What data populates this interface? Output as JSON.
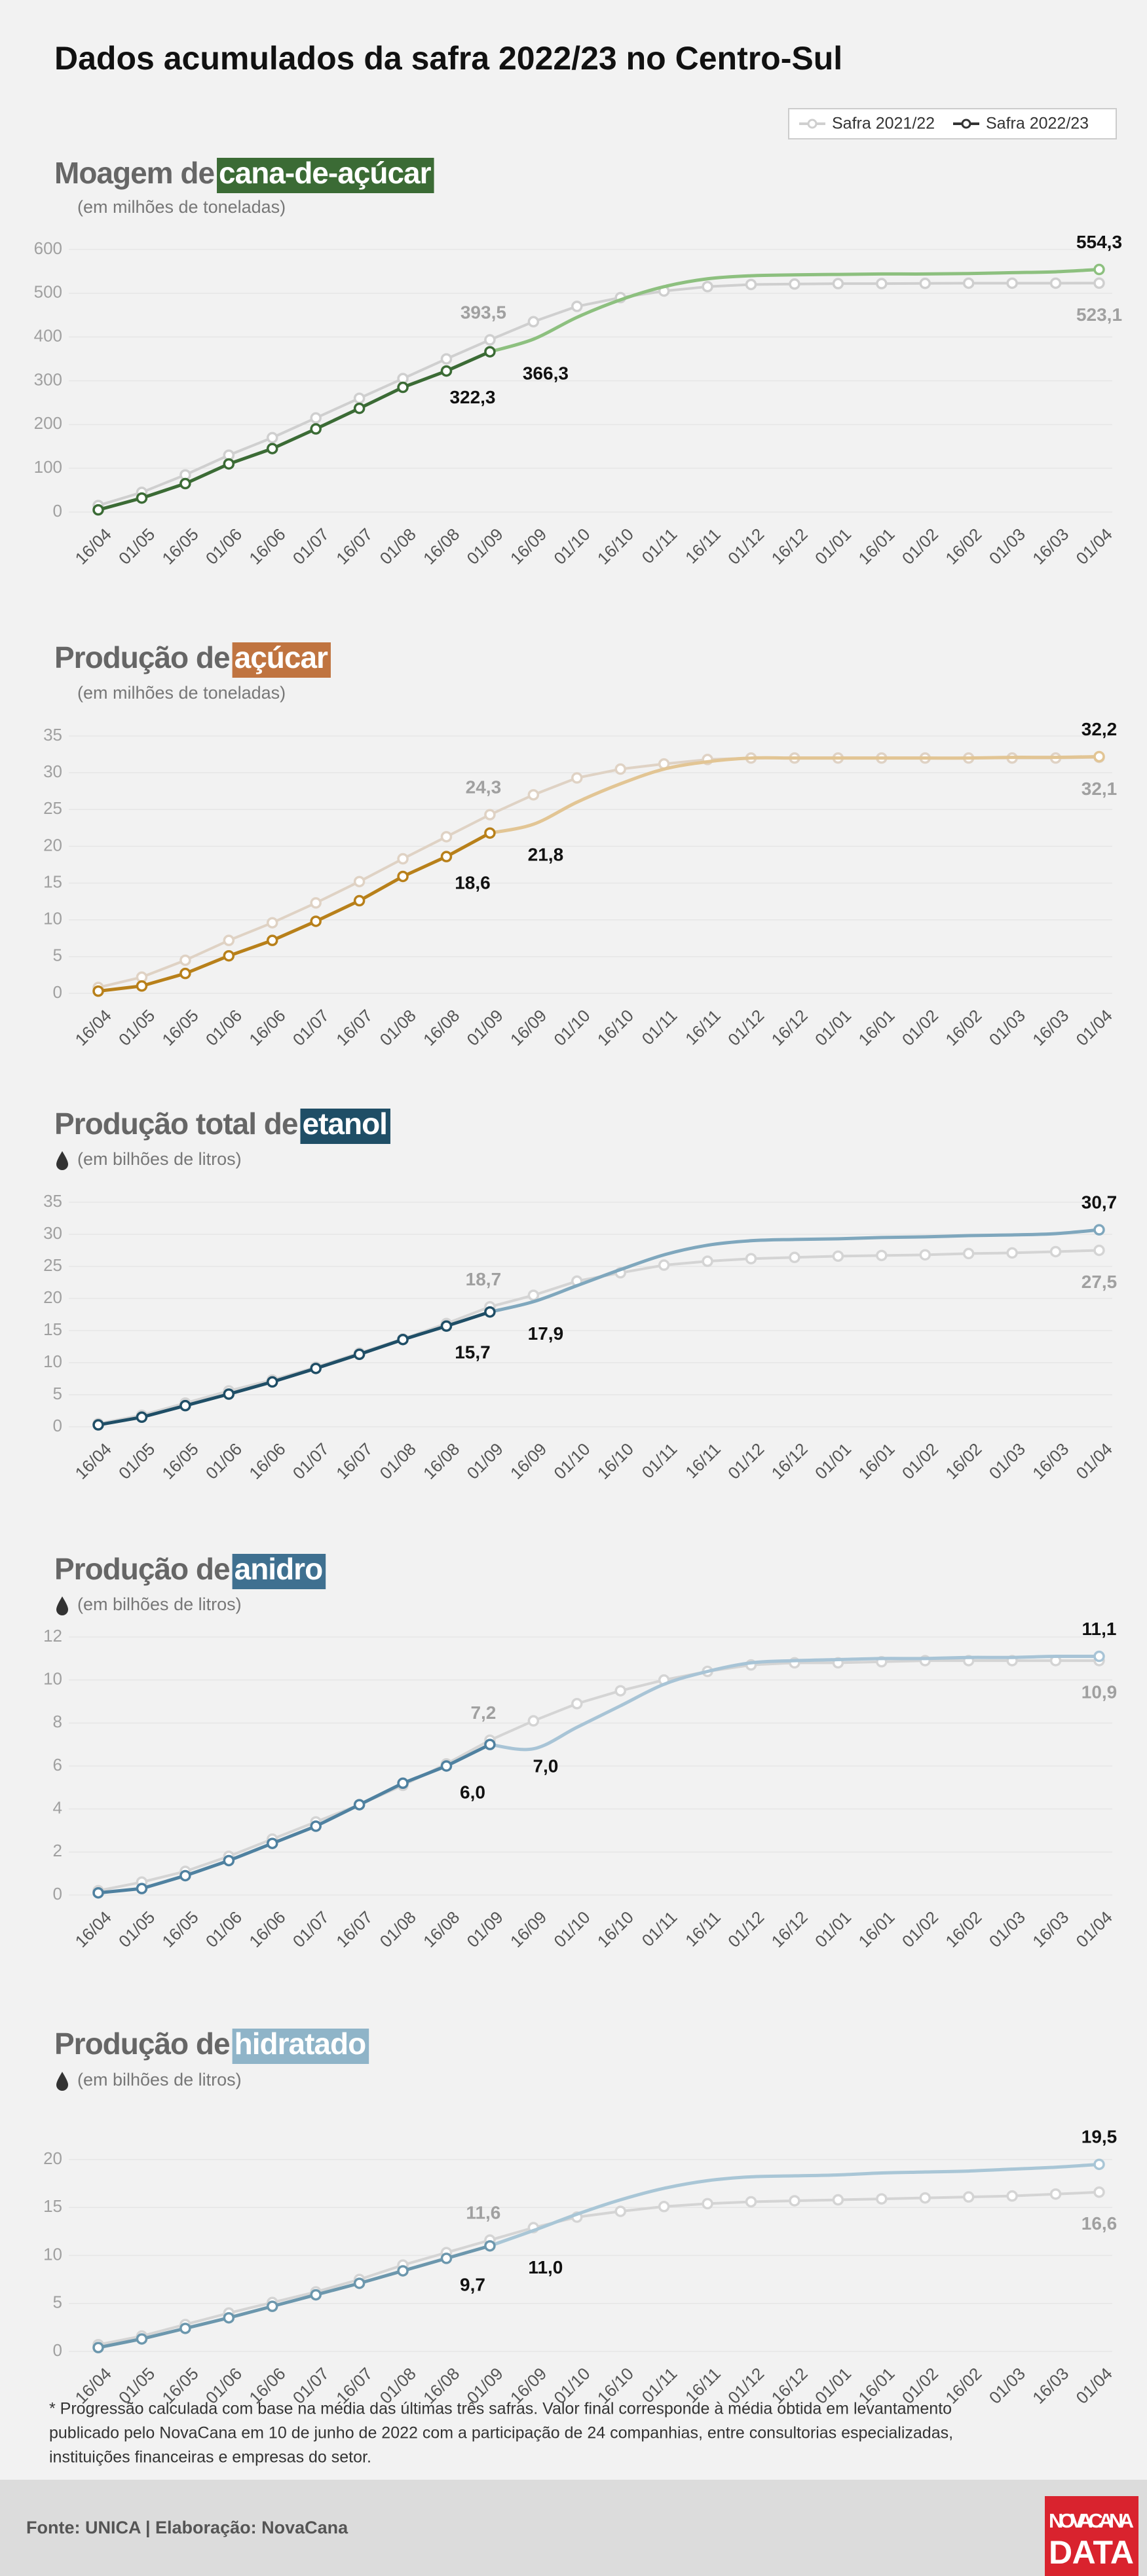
{
  "title": "Dados acumulados da safra 2022/23 no Centro-Sul",
  "legend": [
    {
      "name": "Safra 2021/22",
      "color": "#cfcfcf"
    },
    {
      "name": "Safra 2022/23",
      "color": "#333333"
    }
  ],
  "footnote": [
    "* Progressão calculada com base na média das últimas três safras. Valor final corresponde à média obtida em levantamento",
    "publicado pelo NovaCana em 10 de junho de 2022 com a participação de 24 companhias, entre consultorias especializadas,",
    "instituições financeiras e empresas do setor."
  ],
  "source": "Fonte: UNICA | Elaboração: NovaCana",
  "logo": [
    "NOVACANA",
    "DATA"
  ],
  "chart_data": [
    {
      "type": "line",
      "title_prefix": "Moagem de",
      "title_highlight": "cana-de-açúcar",
      "title_color": "#3b6b35",
      "subtitle": "(em milhões de toneladas)",
      "categories": [
        "16/04",
        "01/05",
        "16/05",
        "01/06",
        "16/06",
        "01/07",
        "16/07",
        "01/08",
        "16/08",
        "01/09",
        "16/09",
        "01/10",
        "16/10",
        "01/11",
        "16/11",
        "01/12",
        "16/12",
        "01/01",
        "16/01",
        "01/02",
        "16/02",
        "01/03",
        "16/03",
        "01/04"
      ],
      "ylim": [
        0,
        600
      ],
      "yticks": [
        0,
        100,
        200,
        300,
        400,
        500,
        600
      ],
      "series": [
        {
          "color": "#cfcfcf",
          "values": [
            15,
            45,
            85,
            130,
            170,
            215,
            260,
            305,
            350,
            393.5,
            435,
            470,
            490,
            505,
            515,
            520,
            521,
            522,
            522,
            522.5,
            523,
            523,
            523,
            523.1
          ],
          "value_labels": [
            null,
            null,
            null,
            null,
            null,
            null,
            null,
            null,
            null,
            "393,5",
            null,
            null,
            null,
            null,
            null,
            null,
            null,
            null,
            null,
            null,
            null,
            null,
            null,
            "523,1"
          ]
        },
        {
          "color": "#3b6b35",
          "values": [
            5,
            32,
            65,
            110,
            145,
            190,
            237,
            285,
            322.3,
            366.3,
            null,
            null,
            null,
            null,
            null,
            null,
            null,
            null,
            null,
            null,
            null,
            null,
            null,
            null
          ],
          "value_labels": [
            null,
            null,
            null,
            null,
            null,
            null,
            null,
            null,
            "322,3",
            "366,3",
            null,
            null,
            null,
            null,
            null,
            null,
            null,
            null,
            null,
            null,
            null,
            null,
            null,
            null
          ]
        }
      ],
      "projection": {
        "color": "#8dc07f",
        "values": [
          null,
          null,
          null,
          null,
          null,
          null,
          null,
          null,
          null,
          366.3,
          395,
          445,
          485,
          515,
          533,
          540,
          542,
          543,
          544,
          544,
          545,
          547,
          549,
          554.3
        ],
        "value_labels": [
          null,
          null,
          null,
          null,
          null,
          null,
          null,
          null,
          null,
          null,
          null,
          null,
          null,
          null,
          null,
          null,
          null,
          null,
          null,
          null,
          null,
          null,
          null,
          "554,3"
        ]
      }
    },
    {
      "type": "line",
      "title_prefix": "Produção de",
      "title_highlight": "açúcar",
      "title_color": "#c07440",
      "subtitle": "(em milhões de toneladas)",
      "categories": [
        "16/04",
        "01/05",
        "16/05",
        "01/06",
        "16/06",
        "01/07",
        "16/07",
        "01/08",
        "16/08",
        "01/09",
        "16/09",
        "01/10",
        "16/10",
        "01/11",
        "16/11",
        "01/12",
        "16/12",
        "01/01",
        "16/01",
        "01/02",
        "16/02",
        "01/03",
        "16/03",
        "01/04"
      ],
      "ylim": [
        0,
        35
      ],
      "yticks": [
        0,
        5,
        10,
        15,
        20,
        25,
        30,
        35
      ],
      "series": [
        {
          "color": "#dfd2c4",
          "values": [
            0.8,
            2.2,
            4.5,
            7.2,
            9.6,
            12.3,
            15.2,
            18.3,
            21.3,
            24.3,
            27,
            29.3,
            30.5,
            31.2,
            31.8,
            32,
            32,
            32,
            32,
            32,
            32,
            32,
            32,
            32.1
          ],
          "value_labels": [
            null,
            null,
            null,
            null,
            null,
            null,
            null,
            null,
            null,
            "24,3",
            null,
            null,
            null,
            null,
            null,
            null,
            null,
            null,
            null,
            null,
            null,
            null,
            null,
            "32,1"
          ]
        },
        {
          "color": "#b8801a",
          "values": [
            0.3,
            1,
            2.7,
            5.1,
            7.2,
            9.8,
            12.6,
            15.9,
            18.6,
            21.8,
            null,
            null,
            null,
            null,
            null,
            null,
            null,
            null,
            null,
            null,
            null,
            null,
            null,
            null
          ],
          "value_labels": [
            null,
            null,
            null,
            null,
            null,
            null,
            null,
            null,
            "18,6",
            "21,8",
            null,
            null,
            null,
            null,
            null,
            null,
            null,
            null,
            null,
            null,
            null,
            null,
            null,
            null
          ]
        }
      ],
      "projection": {
        "color": "#e2c594",
        "values": [
          null,
          null,
          null,
          null,
          null,
          null,
          null,
          null,
          null,
          21.8,
          23,
          26,
          28.5,
          30.5,
          31.5,
          32,
          32,
          32,
          32,
          32,
          32,
          32.1,
          32.1,
          32.2
        ],
        "value_labels": [
          null,
          null,
          null,
          null,
          null,
          null,
          null,
          null,
          null,
          null,
          null,
          null,
          null,
          null,
          null,
          null,
          null,
          null,
          null,
          null,
          null,
          null,
          null,
          "32,2"
        ]
      }
    },
    {
      "type": "line",
      "title_prefix": "Produção total de",
      "title_highlight": "etanol",
      "title_color": "#1f4e66",
      "subtitle": "(em bilhões de litros)",
      "categories": [
        "16/04",
        "01/05",
        "16/05",
        "01/06",
        "16/06",
        "01/07",
        "16/07",
        "01/08",
        "16/08",
        "01/09",
        "16/09",
        "01/10",
        "16/10",
        "01/11",
        "16/11",
        "01/12",
        "16/12",
        "01/01",
        "16/01",
        "01/02",
        "16/02",
        "01/03",
        "16/03",
        "01/04"
      ],
      "ylim": [
        0,
        35
      ],
      "yticks": [
        0,
        5,
        10,
        15,
        20,
        25,
        30,
        35
      ],
      "series": [
        {
          "color": "#d4d4d4",
          "values": [
            0.5,
            1.8,
            3.7,
            5.6,
            7.3,
            9.3,
            11.5,
            13.7,
            16.1,
            18.7,
            20.5,
            22.7,
            24,
            25.2,
            25.8,
            26.2,
            26.4,
            26.6,
            26.7,
            26.8,
            27,
            27.1,
            27.3,
            27.5
          ],
          "value_labels": [
            null,
            null,
            null,
            null,
            null,
            null,
            null,
            null,
            null,
            "18,7",
            null,
            null,
            null,
            null,
            null,
            null,
            null,
            null,
            null,
            null,
            null,
            null,
            null,
            "27,5"
          ]
        },
        {
          "color": "#1f4e66",
          "values": [
            0.3,
            1.5,
            3.3,
            5.1,
            7,
            9.1,
            11.3,
            13.6,
            15.7,
            17.9,
            null,
            null,
            null,
            null,
            null,
            null,
            null,
            null,
            null,
            null,
            null,
            null,
            null,
            null
          ],
          "value_labels": [
            null,
            null,
            null,
            null,
            null,
            null,
            null,
            null,
            "15,7",
            "17,9",
            null,
            null,
            null,
            null,
            null,
            null,
            null,
            null,
            null,
            null,
            null,
            null,
            null,
            null
          ]
        }
      ],
      "projection": {
        "color": "#7fa7bd",
        "values": [
          null,
          null,
          null,
          null,
          null,
          null,
          null,
          null,
          null,
          17.9,
          19.5,
          22,
          24.5,
          26.8,
          28.3,
          29,
          29.2,
          29.3,
          29.5,
          29.6,
          29.8,
          29.9,
          30.1,
          30.7
        ],
        "value_labels": [
          null,
          null,
          null,
          null,
          null,
          null,
          null,
          null,
          null,
          null,
          null,
          null,
          null,
          null,
          null,
          null,
          null,
          null,
          null,
          null,
          null,
          null,
          null,
          "30,7"
        ]
      }
    },
    {
      "type": "line",
      "title_prefix": "Produção de",
      "title_highlight": "anidro",
      "title_color": "#3f7090",
      "subtitle": "(em bilhões de litros)",
      "categories": [
        "16/04",
        "01/05",
        "16/05",
        "01/06",
        "16/06",
        "01/07",
        "16/07",
        "01/08",
        "16/08",
        "01/09",
        "16/09",
        "01/10",
        "16/10",
        "01/11",
        "16/11",
        "01/12",
        "16/12",
        "01/01",
        "16/01",
        "01/02",
        "16/02",
        "01/03",
        "16/03",
        "01/04"
      ],
      "ylim": [
        0,
        12
      ],
      "yticks": [
        0,
        2,
        4,
        6,
        8,
        10,
        12
      ],
      "series": [
        {
          "color": "#d4d4d4",
          "values": [
            0.2,
            0.6,
            1.1,
            1.8,
            2.6,
            3.4,
            4.2,
            5.1,
            6.1,
            7.2,
            8.1,
            8.9,
            9.5,
            10,
            10.4,
            10.7,
            10.8,
            10.8,
            10.85,
            10.9,
            10.9,
            10.9,
            10.9,
            10.9
          ],
          "value_labels": [
            null,
            null,
            null,
            null,
            null,
            null,
            null,
            null,
            null,
            "7,2",
            null,
            null,
            null,
            null,
            null,
            null,
            null,
            null,
            null,
            null,
            null,
            null,
            null,
            "10,9"
          ]
        },
        {
          "color": "#4f81a0",
          "values": [
            0.1,
            0.3,
            0.9,
            1.6,
            2.4,
            3.2,
            4.2,
            5.2,
            6.0,
            7.0,
            null,
            null,
            null,
            null,
            null,
            null,
            null,
            null,
            null,
            null,
            null,
            null,
            null,
            null
          ],
          "value_labels": [
            null,
            null,
            null,
            null,
            null,
            null,
            null,
            null,
            "6,0",
            "7,0",
            null,
            null,
            null,
            null,
            null,
            null,
            null,
            null,
            null,
            null,
            null,
            null,
            null,
            null
          ]
        }
      ],
      "projection": {
        "color": "#a8c4d6",
        "values": [
          null,
          null,
          null,
          null,
          null,
          null,
          null,
          null,
          null,
          7.0,
          6.8,
          7.8,
          8.8,
          9.8,
          10.4,
          10.8,
          10.9,
          10.95,
          11,
          11,
          11.05,
          11.05,
          11.1,
          11.1
        ],
        "value_labels": [
          null,
          null,
          null,
          null,
          null,
          null,
          null,
          null,
          null,
          null,
          null,
          null,
          null,
          null,
          null,
          null,
          null,
          null,
          null,
          null,
          null,
          null,
          null,
          "11,1"
        ]
      }
    },
    {
      "type": "line",
      "title_prefix": "Produção de",
      "title_highlight": "hidratado",
      "title_color": "#8fb4c8",
      "subtitle": "(em bilhões de litros)",
      "categories": [
        "16/04",
        "01/05",
        "16/05",
        "01/06",
        "16/06",
        "01/07",
        "16/07",
        "01/08",
        "16/08",
        "01/09",
        "16/09",
        "01/10",
        "16/10",
        "01/11",
        "16/11",
        "01/12",
        "16/12",
        "01/01",
        "16/01",
        "01/02",
        "16/02",
        "01/03",
        "16/03",
        "01/04"
      ],
      "ylim": [
        0,
        20
      ],
      "yticks": [
        0,
        5,
        10,
        15,
        20
      ],
      "series": [
        {
          "color": "#d4d4d4",
          "values": [
            0.7,
            1.6,
            2.8,
            4,
            5.1,
            6.2,
            7.5,
            9,
            10.3,
            11.6,
            12.9,
            14,
            14.6,
            15.1,
            15.4,
            15.6,
            15.7,
            15.8,
            15.9,
            16,
            16.1,
            16.2,
            16.4,
            16.6
          ],
          "value_labels": [
            null,
            null,
            null,
            null,
            null,
            null,
            null,
            null,
            null,
            "11,6",
            null,
            null,
            null,
            null,
            null,
            null,
            null,
            null,
            null,
            null,
            null,
            null,
            null,
            "16,6"
          ]
        },
        {
          "color": "#6c97ad",
          "values": [
            0.4,
            1.3,
            2.4,
            3.5,
            4.7,
            5.9,
            7.1,
            8.4,
            9.7,
            11.0,
            null,
            null,
            null,
            null,
            null,
            null,
            null,
            null,
            null,
            null,
            null,
            null,
            null,
            null
          ],
          "value_labels": [
            null,
            null,
            null,
            null,
            null,
            null,
            null,
            null,
            "9,7",
            "11,0",
            null,
            null,
            null,
            null,
            null,
            null,
            null,
            null,
            null,
            null,
            null,
            null,
            null,
            null
          ]
        }
      ],
      "projection": {
        "color": "#a9c6d6",
        "values": [
          null,
          null,
          null,
          null,
          null,
          null,
          null,
          null,
          null,
          11.0,
          12.6,
          14.3,
          15.8,
          17,
          17.8,
          18.2,
          18.3,
          18.4,
          18.6,
          18.7,
          18.8,
          19,
          19.2,
          19.5
        ],
        "value_labels": [
          null,
          null,
          null,
          null,
          null,
          null,
          null,
          null,
          null,
          null,
          null,
          null,
          null,
          null,
          null,
          null,
          null,
          null,
          null,
          null,
          null,
          null,
          null,
          "19,5"
        ]
      }
    }
  ]
}
